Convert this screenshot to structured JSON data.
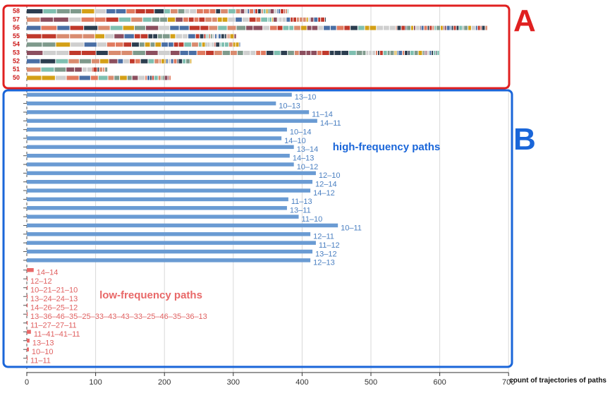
{
  "chart_data": {
    "type": "bar",
    "xlabel": "count of trajectories of paths",
    "xlim": [
      0,
      700
    ],
    "xticks": [
      "0",
      "100",
      "200",
      "300",
      "400",
      "500",
      "600",
      "700"
    ],
    "grid": "vertical",
    "panel_a": {
      "letter": "A",
      "rows": [
        {
          "label": "58",
          "total": 380
        },
        {
          "label": "57",
          "total": 435
        },
        {
          "label": "56",
          "total": 670
        },
        {
          "label": "55",
          "total": 305
        },
        {
          "label": "54",
          "total": 310
        },
        {
          "label": "53",
          "total": 600
        },
        {
          "label": "52",
          "total": 240
        },
        {
          "label": "51",
          "total": 118
        },
        {
          "label": "50",
          "total": 210
        }
      ]
    },
    "panel_b": {
      "letter": "B",
      "series": [
        {
          "name": "high-frequency paths",
          "color": "#6a9bd3",
          "categories": [
            "13–10",
            "10–13",
            "11–14",
            "14–11",
            "10–14",
            "14–10",
            "13–14",
            "14–13",
            "10–12",
            "12–10",
            "12–14",
            "14–12",
            "11–13",
            "13–11",
            "11–10",
            "10–11",
            "12–11",
            "11–12",
            "13–12",
            "12–13"
          ],
          "values": [
            385,
            362,
            410,
            422,
            378,
            370,
            388,
            382,
            388,
            420,
            415,
            412,
            380,
            378,
            395,
            452,
            412,
            420,
            415,
            412
          ]
        },
        {
          "name": "low-frequency paths",
          "color": "#e86868",
          "categories": [
            "14–14",
            "12–12",
            "10–21–21–10",
            "13–24–24–13",
            "14–26–25–12",
            "13–36–46–35–25–33–43–43–33–25–46–35–36–13",
            "11–27–27–11",
            "11–41–41–11",
            "13–13",
            "10–10",
            "11–11"
          ],
          "values": [
            10,
            1,
            1,
            1,
            1,
            1,
            1,
            6,
            4,
            3,
            1
          ]
        }
      ]
    },
    "colors": {
      "panel_a_frame": "#e02020",
      "panel_b_frame": "#1a66d9",
      "high_bar": "#6a9bd3",
      "low_bar": "#e86868",
      "segment_palette": [
        "#c0392b",
        "#2c3e50",
        "#7fbfb0",
        "#d98b6f",
        "#7f9a8c",
        "#d4a017",
        "#8c4f5f",
        "#cfcfcf",
        "#4a6fa5",
        "#e07a5f"
      ]
    }
  }
}
